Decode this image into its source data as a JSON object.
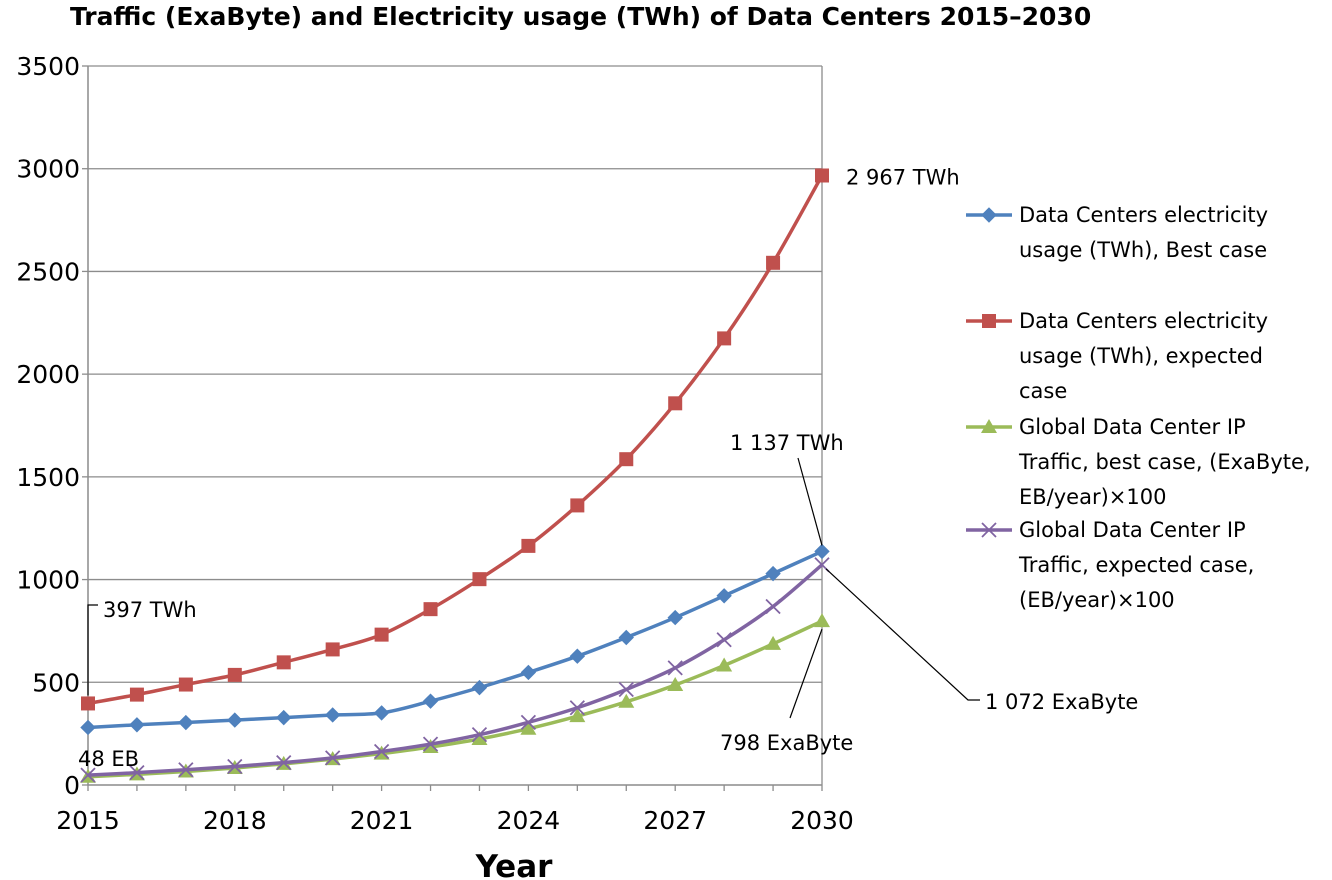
{
  "chart_data": {
    "type": "line",
    "title": "Traffic  (ExaByte) and Electricity usage (TWh) of Data Centers 2015–2030",
    "xlabel": "Year",
    "ylabel": "",
    "x": [
      2015,
      2016,
      2017,
      2018,
      2019,
      2020,
      2021,
      2022,
      2023,
      2024,
      2025,
      2026,
      2027,
      2028,
      2029,
      2030
    ],
    "xticks": [
      "2015",
      "2018",
      "2021",
      "2024",
      "2027",
      "2030"
    ],
    "xlim": [
      2015,
      2030
    ],
    "ylim": [
      0,
      3500
    ],
    "yticks": [
      "0",
      "500",
      "1000",
      "1500",
      "2000",
      "2500",
      "3000",
      "3500"
    ],
    "grid": true,
    "legend_position": "right",
    "series": [
      {
        "name": "Data Centers electricity usage (TWh), Best case",
        "legend_lines": [
          "Data Centers electricity",
          "usage (TWh), Best case"
        ],
        "color": "#4F81BD",
        "marker": "diamond",
        "values": [
          280,
          293,
          304,
          316,
          328,
          341,
          351,
          408,
          474,
          548,
          627,
          718,
          815,
          921,
          1029,
          1137
        ]
      },
      {
        "name": "Data Centers electricity usage (TWh), expected case",
        "legend_lines": [
          "Data Centers electricity",
          "usage (TWh), expected",
          "case"
        ],
        "color": "#C0504D",
        "marker": "square",
        "values": [
          397,
          440,
          489,
          536,
          597,
          660,
          732,
          856,
          1002,
          1164,
          1361,
          1586,
          1858,
          2174,
          2542,
          2967
        ]
      },
      {
        "name": "Global Data Center IP Traffic, best case, (ExaByte, EB/year)×100",
        "legend_lines": [
          "Global Data Center IP",
          "Traffic, best case, (ExaByte,",
          "EB/year)×100"
        ],
        "color": "#9BBB59",
        "marker": "triangle",
        "values": [
          40,
          52,
          66,
          83,
          103,
          126,
          153,
          185,
          224,
          274,
          335,
          405,
          487,
          582,
          687,
          798
        ]
      },
      {
        "name": "Global Data Center IP Traffic, expected case, (EB/year)×100",
        "legend_lines": [
          "Global Data Center IP",
          "Traffic, expected case,",
          "(EB/year)×100"
        ],
        "color": "#8064A2",
        "marker": "x",
        "values": [
          48,
          60,
          74,
          90,
          109,
          132,
          163,
          199,
          245,
          305,
          376,
          465,
          570,
          707,
          869,
          1072
        ]
      }
    ],
    "annotations": [
      {
        "text": "2 967 TWh",
        "x": 2030,
        "y": 2967
      },
      {
        "text": "1 137 TWh",
        "x": 2030,
        "y": 1137
      },
      {
        "text": "397 TWh",
        "x": 2015,
        "y": 397
      },
      {
        "text": "1 072 ExaByte",
        "x": 2030,
        "y": 1072
      },
      {
        "text": "798 ExaByte",
        "x": 2030,
        "y": 798
      },
      {
        "text": "48 EB",
        "x": 2015,
        "y": 48
      }
    ]
  }
}
